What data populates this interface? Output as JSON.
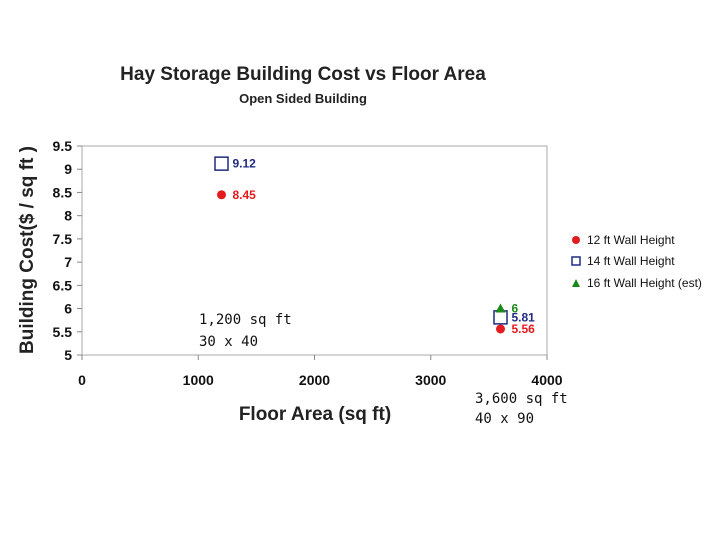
{
  "chart_data": {
    "type": "scatter",
    "title": "Hay Storage Building Cost  vs Floor Area",
    "subtitle": "Open Sided Building",
    "xlabel": "Floor Area (sq ft)",
    "ylabel": "Building Cost($ / sq ft )",
    "xlim": [
      0,
      4000
    ],
    "ylim": [
      5,
      9.5
    ],
    "xticks": [
      "0",
      "1000",
      "2000",
      "3000",
      "4000"
    ],
    "yticks": [
      "5",
      "5.5",
      "6",
      "6.5",
      "7",
      "7.5",
      "8",
      "8.5",
      "9",
      "9.5"
    ],
    "grid": false,
    "legend_position": "right",
    "series": [
      {
        "name": "12 ft Wall Height",
        "marker": "circle",
        "color": "#e41a1c",
        "label_color": "#e41a1c",
        "points": [
          {
            "x": 1200,
            "y": 8.45,
            "label": "8.45"
          },
          {
            "x": 3600,
            "y": 5.56,
            "label": "5.56"
          }
        ]
      },
      {
        "name": "14 ft Wall Height",
        "marker": "square",
        "color": "#1f2a80",
        "label_color": "#1f2a80",
        "points": [
          {
            "x": 1200,
            "y": 9.12,
            "label": "9.12"
          },
          {
            "x": 3600,
            "y": 5.81,
            "label": "5.81"
          }
        ]
      },
      {
        "name": "16 ft Wall Height (est)",
        "marker": "triangle",
        "color": "#1a8a1a",
        "label_color": "#1a8a1a",
        "points": [
          {
            "x": 3600,
            "y": 6.0,
            "label": "6"
          }
        ]
      }
    ],
    "annotations": [
      {
        "line1": "1,200 sq ft",
        "line2": "30 x 40"
      },
      {
        "line1": "3,600 sq ft",
        "line2": "40 x 90"
      }
    ]
  }
}
